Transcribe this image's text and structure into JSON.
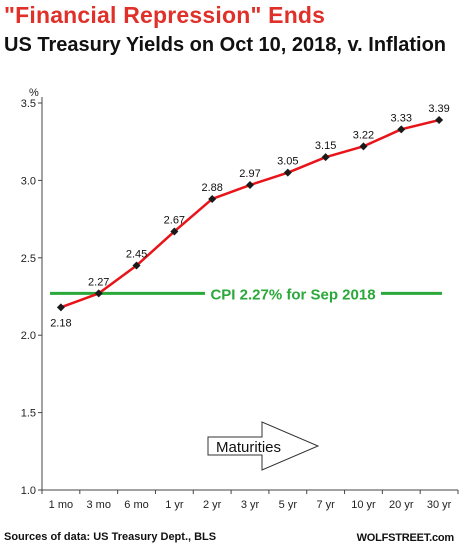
{
  "header": {
    "title": "\"Financial Repression\" Ends",
    "subtitle": "US Treasury Yields on Oct 10, 2018, v. Inflation"
  },
  "footer": {
    "source": "Sources of data: US Treasury Dept., BLS",
    "brand": "WOLFSTREET.com"
  },
  "colors": {
    "series": "#e8141a",
    "marker": "#1a1a1a",
    "cpi": "#2aa83a",
    "title": "#e0302a"
  },
  "chart_data": {
    "type": "line",
    "title": "",
    "xlabel": "",
    "ylabel": "%",
    "ylim": [
      1.0,
      3.5
    ],
    "yticks": [
      "1.0",
      "1.5",
      "2.0",
      "2.5",
      "3.0",
      "3.5"
    ],
    "categories": [
      "1 mo",
      "3 mo",
      "6 mo",
      "1 yr",
      "2 yr",
      "3 yr",
      "5 yr",
      "7 yr",
      "10 yr",
      "20 yr",
      "30 yr"
    ],
    "values": [
      2.18,
      2.27,
      2.45,
      2.67,
      2.88,
      2.97,
      3.05,
      3.15,
      3.22,
      3.33,
      3.39
    ],
    "data_labels": [
      "2.18",
      "2.27",
      "2.45",
      "2.67",
      "2.88",
      "2.97",
      "3.05",
      "3.15",
      "3.22",
      "3.33",
      "3.39"
    ],
    "reference_line": {
      "value": 2.27,
      "label": "CPI 2.27% for Sep 2018"
    },
    "annotation": "Maturities",
    "grid": false,
    "legend": "none"
  }
}
